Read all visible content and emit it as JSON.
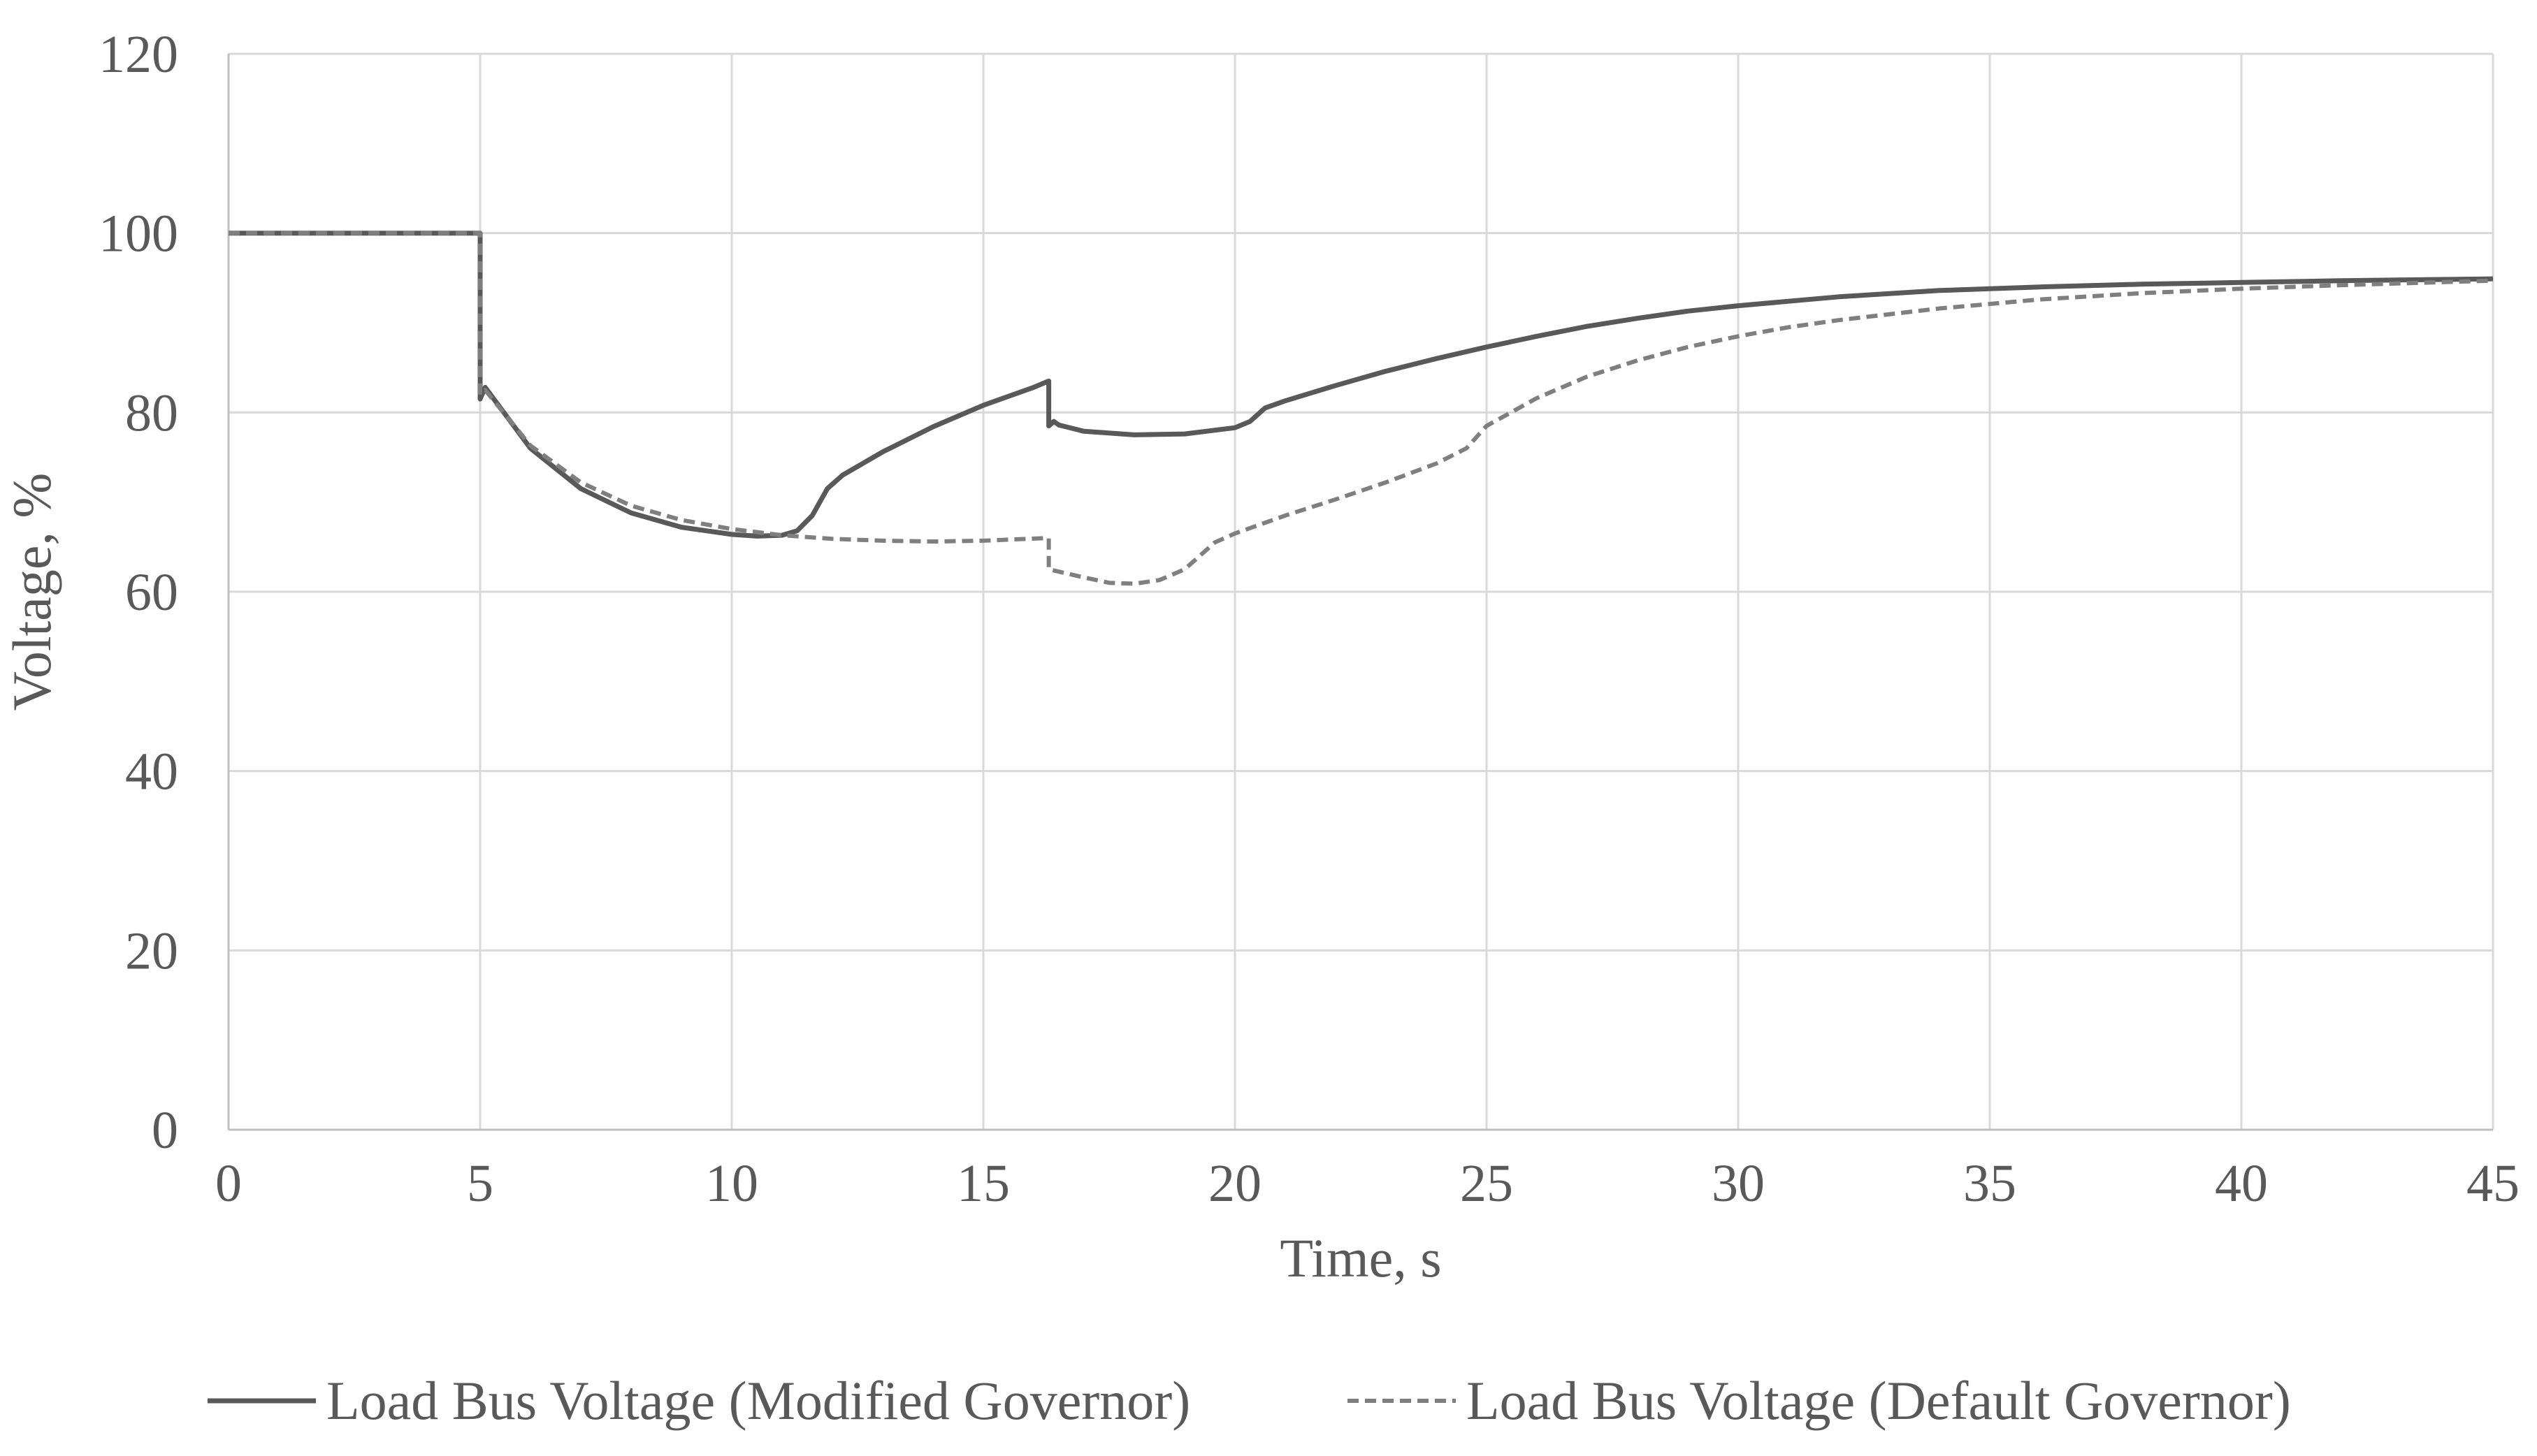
{
  "chart_data": {
    "type": "line",
    "title": "",
    "xlabel": "Time, s",
    "ylabel": "Voltage, %",
    "xlim": [
      0,
      45
    ],
    "ylim": [
      0,
      120
    ],
    "xticks": [
      0,
      5,
      10,
      15,
      20,
      25,
      30,
      35,
      40,
      45
    ],
    "yticks": [
      0,
      20,
      40,
      60,
      80,
      100,
      120
    ],
    "grid": true,
    "legend_position": "bottom",
    "series": [
      {
        "name": "Load Bus Voltage (Modified Governor)",
        "style": "solid",
        "color": "#595959",
        "points": [
          [
            0,
            100
          ],
          [
            5,
            100
          ],
          [
            5,
            81.5
          ],
          [
            5.1,
            82.8
          ],
          [
            6,
            76
          ],
          [
            7,
            71.5
          ],
          [
            8,
            68.8
          ],
          [
            9,
            67.2
          ],
          [
            10,
            66.4
          ],
          [
            10.5,
            66.2
          ],
          [
            11,
            66.3
          ],
          [
            11.3,
            66.8
          ],
          [
            11.6,
            68.5
          ],
          [
            11.9,
            71.5
          ],
          [
            12.2,
            73
          ],
          [
            13,
            75.6
          ],
          [
            14,
            78.4
          ],
          [
            15,
            80.8
          ],
          [
            16,
            82.8
          ],
          [
            16.3,
            83.5
          ],
          [
            16.3,
            78.5
          ],
          [
            16.4,
            79
          ],
          [
            16.5,
            78.6
          ],
          [
            17,
            77.9
          ],
          [
            18,
            77.5
          ],
          [
            19,
            77.6
          ],
          [
            20,
            78.3
          ],
          [
            20.3,
            79
          ],
          [
            20.6,
            80.5
          ],
          [
            21,
            81.3
          ],
          [
            22,
            83
          ],
          [
            23,
            84.6
          ],
          [
            24,
            86
          ],
          [
            25,
            87.3
          ],
          [
            26,
            88.5
          ],
          [
            27,
            89.6
          ],
          [
            28,
            90.5
          ],
          [
            29,
            91.3
          ],
          [
            30,
            91.9
          ],
          [
            32,
            92.9
          ],
          [
            34,
            93.6
          ],
          [
            36,
            94
          ],
          [
            38,
            94.3
          ],
          [
            40,
            94.5
          ],
          [
            42,
            94.7
          ],
          [
            45,
            94.9
          ]
        ]
      },
      {
        "name": "Load Bus Voltage (Default Governor)",
        "style": "dashed",
        "color": "#7f7f7f",
        "points": [
          [
            0,
            100
          ],
          [
            5,
            100
          ],
          [
            5,
            82
          ],
          [
            5.1,
            82.5
          ],
          [
            6,
            76.3
          ],
          [
            7,
            72.2
          ],
          [
            8,
            69.6
          ],
          [
            9,
            68
          ],
          [
            10,
            67
          ],
          [
            11,
            66.3
          ],
          [
            12,
            65.9
          ],
          [
            13,
            65.7
          ],
          [
            14,
            65.6
          ],
          [
            15,
            65.7
          ],
          [
            16.3,
            66
          ],
          [
            16.3,
            62.5
          ],
          [
            17,
            61.6
          ],
          [
            17.5,
            61
          ],
          [
            18,
            60.9
          ],
          [
            18.5,
            61.3
          ],
          [
            19,
            62.5
          ],
          [
            19.3,
            64
          ],
          [
            19.6,
            65.5
          ],
          [
            20,
            66.5
          ],
          [
            21,
            68.5
          ],
          [
            22,
            70.3
          ],
          [
            23,
            72.2
          ],
          [
            24,
            74.3
          ],
          [
            24.6,
            76
          ],
          [
            25,
            78.5
          ],
          [
            26,
            81.6
          ],
          [
            27,
            84
          ],
          [
            28,
            85.8
          ],
          [
            29,
            87.3
          ],
          [
            30,
            88.5
          ],
          [
            31,
            89.5
          ],
          [
            32,
            90.3
          ],
          [
            34,
            91.6
          ],
          [
            36,
            92.6
          ],
          [
            38,
            93.3
          ],
          [
            40,
            93.8
          ],
          [
            42,
            94.2
          ],
          [
            45,
            94.7
          ]
        ]
      }
    ]
  }
}
